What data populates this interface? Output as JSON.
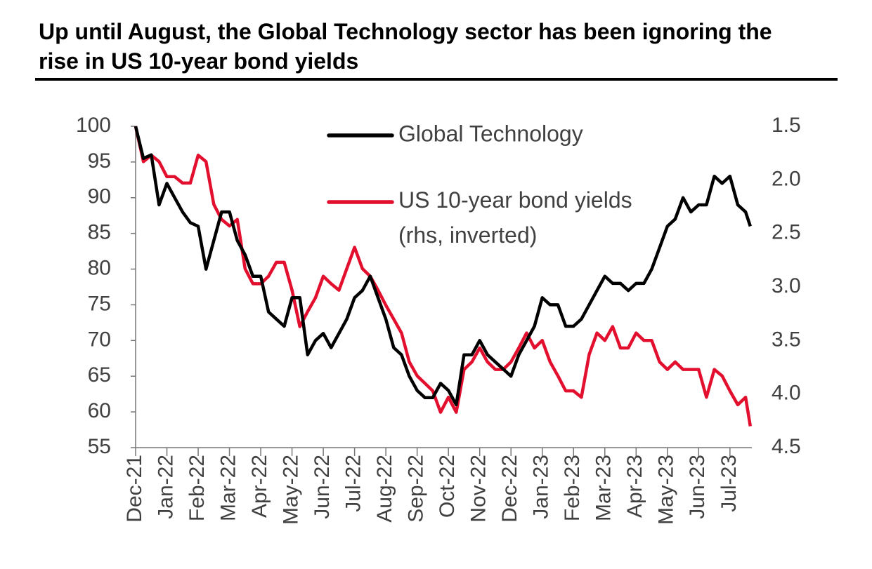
{
  "chart_data": {
    "type": "line",
    "title": "Up until August, the Global Technology sector has been ignoring the rise in US 10-year bond yields",
    "x": [
      0,
      0.25,
      0.5,
      0.75,
      1,
      1.25,
      1.5,
      1.75,
      2,
      2.25,
      2.5,
      2.75,
      3,
      3.25,
      3.5,
      3.75,
      4,
      4.25,
      4.5,
      4.75,
      5,
      5.25,
      5.5,
      5.75,
      6,
      6.25,
      6.5,
      6.75,
      7,
      7.25,
      7.5,
      7.75,
      8,
      8.25,
      8.5,
      8.75,
      9,
      9.25,
      9.5,
      9.75,
      10,
      10.25,
      10.5,
      10.75,
      11,
      11.25,
      11.5,
      11.75,
      12,
      12.25,
      12.5,
      12.75,
      13,
      13.25,
      13.5,
      13.75,
      14,
      14.25,
      14.5,
      14.75,
      15,
      15.25,
      15.5,
      15.75,
      16,
      16.25,
      16.5,
      16.75,
      17,
      17.25,
      17.5,
      17.75,
      18,
      18.25,
      18.5,
      18.75,
      19,
      19.25,
      19.5,
      19.65
    ],
    "series": [
      {
        "name": "Global Technology",
        "color": "#000000",
        "values": [
          100,
          95.5,
          96,
          89,
          92,
          90,
          88,
          86.5,
          86,
          80,
          84,
          88,
          88,
          84,
          82,
          79,
          79,
          74,
          73,
          72,
          76,
          76,
          68,
          70,
          71,
          69,
          71,
          73,
          76,
          77,
          79,
          76,
          73,
          69,
          68,
          65,
          63,
          62,
          62,
          64,
          63,
          61,
          68,
          68,
          70,
          68,
          67,
          66,
          65,
          68,
          70,
          72,
          76,
          75,
          75,
          72,
          72,
          73,
          75,
          77,
          79,
          78,
          78,
          77,
          78,
          78,
          80,
          83,
          86,
          87,
          90,
          88,
          89,
          89,
          93,
          92,
          93,
          89,
          88,
          86
        ]
      },
      {
        "name": "US 10-year bond yields (rhs, inverted)",
        "color": "#e2102e",
        "axis": "y2",
        "values": [
          1.5,
          1.83,
          1.77,
          1.83,
          1.97,
          1.97,
          2.03,
          2.03,
          1.77,
          1.83,
          2.23,
          2.37,
          2.43,
          2.37,
          2.83,
          2.97,
          2.97,
          2.9,
          2.77,
          2.77,
          3.03,
          3.37,
          3.23,
          3.1,
          2.9,
          2.97,
          3.03,
          2.83,
          2.63,
          2.83,
          2.9,
          3.03,
          3.17,
          3.3,
          3.43,
          3.7,
          3.83,
          3.9,
          3.97,
          4.17,
          4.03,
          4.17,
          3.77,
          3.7,
          3.57,
          3.7,
          3.77,
          3.77,
          3.7,
          3.57,
          3.43,
          3.57,
          3.5,
          3.7,
          3.83,
          3.97,
          3.97,
          4.03,
          3.63,
          3.43,
          3.5,
          3.37,
          3.57,
          3.57,
          3.43,
          3.5,
          3.5,
          3.7,
          3.77,
          3.7,
          3.77,
          3.77,
          3.77,
          4.03,
          3.77,
          3.83,
          3.97,
          4.1,
          4.03,
          4.3
        ]
      }
    ],
    "xlim": [
      0,
      19.7
    ],
    "xticks": [
      {
        "value": 0,
        "label": "Dec-21"
      },
      {
        "value": 1,
        "label": "Jan-22"
      },
      {
        "value": 2,
        "label": "Feb-22"
      },
      {
        "value": 3,
        "label": "Mar-22"
      },
      {
        "value": 4,
        "label": "Apr-22"
      },
      {
        "value": 5,
        "label": "May-22"
      },
      {
        "value": 6,
        "label": "Jun-22"
      },
      {
        "value": 7,
        "label": "Jul-22"
      },
      {
        "value": 8,
        "label": "Aug-22"
      },
      {
        "value": 9,
        "label": "Sep-22"
      },
      {
        "value": 10,
        "label": "Oct-22"
      },
      {
        "value": 11,
        "label": "Nov-22"
      },
      {
        "value": 12,
        "label": "Dec-22"
      },
      {
        "value": 13,
        "label": "Jan-23"
      },
      {
        "value": 14,
        "label": "Feb-23"
      },
      {
        "value": 15,
        "label": "Mar-23"
      },
      {
        "value": 16,
        "label": "Apr-23"
      },
      {
        "value": 17,
        "label": "May-23"
      },
      {
        "value": 18,
        "label": "Jun-23"
      },
      {
        "value": 19,
        "label": "Jul-23"
      }
    ],
    "ylim": [
      55,
      100
    ],
    "yticks": [
      55,
      60,
      65,
      70,
      75,
      80,
      85,
      90,
      95,
      100
    ],
    "y2lim": [
      1.5,
      4.5
    ],
    "y2_inverted": true,
    "y2ticks": [
      1.5,
      {
        "value": 2,
        "label": "2.0"
      },
      2.5,
      {
        "value": 3,
        "label": "3.0"
      },
      3.5,
      {
        "value": 4,
        "label": "4.0"
      },
      4.5
    ],
    "grid": false,
    "legend": "top"
  }
}
